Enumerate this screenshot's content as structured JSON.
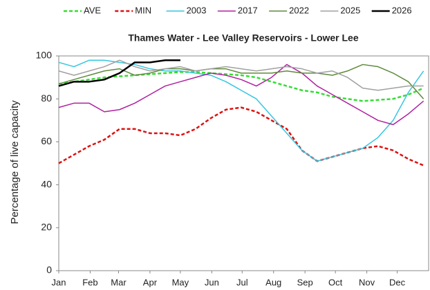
{
  "chart_data": {
    "type": "line",
    "title": "Thames Water - Lee Valley Reservoirs - Lower Lee",
    "y_label": "Percentage of live capacity",
    "x": [
      0,
      15,
      30,
      45,
      60,
      75,
      90,
      105,
      120,
      135,
      150,
      165,
      180,
      195,
      210,
      225,
      240,
      255,
      270,
      285,
      300,
      315,
      330,
      345,
      360
    ],
    "xlim": [
      0,
      365
    ],
    "xticks": [
      {
        "value": 0,
        "label": "Jan"
      },
      {
        "value": 31,
        "label": "Feb"
      },
      {
        "value": 59,
        "label": "Mar"
      },
      {
        "value": 90,
        "label": "Apr"
      },
      {
        "value": 120,
        "label": "May"
      },
      {
        "value": 151,
        "label": "Jun"
      },
      {
        "value": 181,
        "label": "Jul"
      },
      {
        "value": 212,
        "label": "Aug"
      },
      {
        "value": 243,
        "label": "Sep"
      },
      {
        "value": 273,
        "label": "Oct"
      },
      {
        "value": 304,
        "label": "Nov"
      },
      {
        "value": 334,
        "label": "Dec"
      }
    ],
    "ylim": [
      0,
      100
    ],
    "yticks": [
      0,
      20,
      40,
      60,
      80,
      100
    ],
    "grid": false,
    "legend": "top",
    "series": [
      {
        "name": "AVE",
        "color": "#33dd33",
        "dash": true,
        "width": 2.5,
        "values": [
          87,
          88,
          89,
          90,
          90.5,
          91,
          91.5,
          92,
          92.5,
          92.5,
          92,
          91.5,
          91,
          90,
          88,
          86,
          84,
          83,
          81,
          80,
          79,
          79.5,
          80,
          82,
          85
        ]
      },
      {
        "name": "MIN",
        "color": "#dd1111",
        "dash": true,
        "width": 2.5,
        "values": [
          50,
          54,
          58,
          61,
          66,
          66,
          64,
          64,
          63,
          66,
          71,
          75,
          76,
          74,
          70,
          66,
          56,
          51,
          53,
          55,
          57,
          58,
          56,
          52,
          49
        ]
      },
      {
        "name": "2003",
        "color": "#33c6e0",
        "dash": false,
        "width": 1.5,
        "values": [
          97,
          95,
          98,
          98,
          97,
          96,
          94,
          93,
          93,
          92,
          91,
          88,
          84,
          80,
          72,
          64,
          56,
          51,
          53,
          55,
          57,
          62,
          70,
          83,
          93
        ]
      },
      {
        "name": "2017",
        "color": "#b0209e",
        "dash": false,
        "width": 1.5,
        "values": [
          76,
          78,
          78,
          74,
          75,
          78,
          82,
          86,
          88,
          90,
          92,
          91,
          89,
          86,
          90,
          96,
          92,
          86,
          82,
          78,
          74,
          70,
          68,
          73,
          79
        ]
      },
      {
        "name": "2022",
        "color": "#5e8a3a",
        "dash": false,
        "width": 1.5,
        "values": [
          87,
          89,
          91,
          93,
          94,
          91,
          92,
          94,
          94,
          93,
          94,
          94,
          92,
          92,
          92,
          93,
          92,
          92,
          91,
          93,
          96,
          95,
          92,
          88,
          80
        ]
      },
      {
        "name": "2025",
        "color": "#a0a0a0",
        "dash": false,
        "width": 1.5,
        "values": [
          93,
          91,
          93,
          95,
          98,
          95,
          93,
          94,
          95,
          93,
          94,
          95,
          94,
          93,
          94,
          95,
          94,
          92,
          93,
          90,
          85,
          84,
          85,
          86,
          86
        ]
      },
      {
        "name": "2026",
        "color": "#000000",
        "dash": false,
        "width": 2.5,
        "values": [
          86,
          88,
          88,
          89,
          92,
          97,
          97,
          98,
          98,
          null,
          null,
          null,
          null,
          null,
          null,
          null,
          null,
          null,
          null,
          null,
          null,
          null,
          null,
          null,
          null
        ]
      }
    ]
  }
}
